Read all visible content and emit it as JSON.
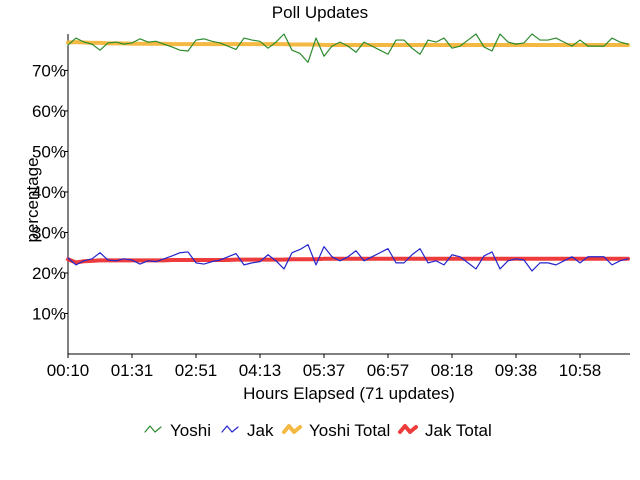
{
  "chart_data": {
    "type": "line",
    "title": "Poll Updates",
    "xlabel": "Hours Elapsed (71 updates)",
    "ylabel": "percentage",
    "ylim": [
      0,
      79
    ],
    "y_ticks": [
      "10%",
      "20%",
      "30%",
      "40%",
      "50%",
      "60%",
      "70%"
    ],
    "y_tick_values": [
      10,
      20,
      30,
      40,
      50,
      60,
      70
    ],
    "x_tick_labels": [
      "00:10",
      "01:31",
      "02:51",
      "04:13",
      "05:37",
      "06:57",
      "08:18",
      "09:38",
      "10:58"
    ],
    "x_tick_indices": [
      0,
      8,
      16,
      24,
      32,
      40,
      48,
      56,
      64
    ],
    "x_count": 71,
    "grid": false,
    "legend_position": "bottom",
    "series": [
      {
        "name": "Yoshi",
        "color": "#2e8b2e",
        "values": [
          76.3,
          78.0,
          77.0,
          76.5,
          75.0,
          76.8,
          77.0,
          76.5,
          76.8,
          77.8,
          77.0,
          77.2,
          76.5,
          75.8,
          75.0,
          74.8,
          77.5,
          77.8,
          77.2,
          76.8,
          76.0,
          75.2,
          78.0,
          77.5,
          77.2,
          75.5,
          77.0,
          79.0,
          75.0,
          74.2,
          72.0,
          78.0,
          73.5,
          76.0,
          77.0,
          76.0,
          74.5,
          77.0,
          76.0,
          75.0,
          74.0,
          77.5,
          77.5,
          75.5,
          74.0,
          77.5,
          77.0,
          78.0,
          75.5,
          76.0,
          77.5,
          79.0,
          75.8,
          74.8,
          79.0,
          77.0,
          76.5,
          76.8,
          79.0,
          77.5,
          77.5,
          78.0,
          77.0,
          76.0,
          77.5,
          76.0,
          76.0,
          76.0,
          78.0,
          77.0,
          76.5
        ]
      },
      {
        "name": "Jak",
        "color": "#2525cc",
        "values": [
          23.7,
          22.0,
          23.0,
          23.5,
          25.0,
          23.2,
          23.0,
          23.5,
          23.2,
          22.2,
          23.0,
          22.8,
          23.5,
          24.2,
          25.0,
          25.2,
          22.5,
          22.2,
          22.8,
          23.2,
          24.0,
          24.8,
          22.0,
          22.5,
          22.8,
          24.5,
          23.0,
          21.0,
          25.0,
          25.8,
          27.0,
          22.0,
          26.5,
          24.0,
          23.0,
          24.0,
          25.5,
          23.0,
          24.0,
          25.0,
          26.0,
          22.5,
          22.5,
          24.5,
          26.0,
          22.5,
          23.0,
          22.0,
          24.5,
          24.0,
          22.5,
          21.0,
          24.2,
          25.2,
          21.0,
          23.0,
          23.5,
          23.2,
          20.5,
          22.5,
          22.5,
          22.0,
          23.0,
          24.0,
          22.5,
          24.0,
          24.0,
          24.0,
          22.0,
          23.0,
          23.5
        ]
      },
      {
        "name": "Yoshi Total",
        "color": "#f4b942",
        "values": [
          76.9,
          77.0,
          76.9,
          76.8,
          76.8,
          76.7,
          76.7,
          76.7,
          76.6,
          76.6,
          76.6,
          76.6,
          76.6,
          76.5,
          76.5,
          76.5,
          76.5,
          76.5,
          76.5,
          76.5,
          76.5,
          76.5,
          76.5,
          76.5,
          76.5,
          76.5,
          76.5,
          76.5,
          76.4,
          76.4,
          76.4,
          76.4,
          76.3,
          76.3,
          76.3,
          76.3,
          76.3,
          76.3,
          76.3,
          76.3,
          76.3,
          76.3,
          76.3,
          76.3,
          76.3,
          76.3,
          76.3,
          76.3,
          76.3,
          76.3,
          76.3,
          76.3,
          76.3,
          76.3,
          76.3,
          76.3,
          76.3,
          76.3,
          76.3,
          76.3,
          76.3,
          76.3,
          76.3,
          76.3,
          76.3,
          76.3,
          76.3,
          76.3,
          76.3,
          76.3,
          76.3
        ]
      },
      {
        "name": "Jak Total",
        "color": "#ee3b3b",
        "values": [
          23.4,
          22.6,
          22.9,
          23.0,
          23.1,
          23.1,
          23.1,
          23.1,
          23.1,
          23.1,
          23.1,
          23.1,
          23.1,
          23.2,
          23.2,
          23.2,
          23.2,
          23.2,
          23.2,
          23.2,
          23.2,
          23.3,
          23.3,
          23.3,
          23.3,
          23.3,
          23.3,
          23.3,
          23.4,
          23.4,
          23.4,
          23.4,
          23.5,
          23.5,
          23.5,
          23.5,
          23.5,
          23.5,
          23.5,
          23.5,
          23.5,
          23.5,
          23.5,
          23.5,
          23.5,
          23.5,
          23.5,
          23.5,
          23.5,
          23.5,
          23.5,
          23.5,
          23.5,
          23.5,
          23.5,
          23.5,
          23.5,
          23.5,
          23.5,
          23.5,
          23.5,
          23.5,
          23.5,
          23.5,
          23.5,
          23.5,
          23.5,
          23.5,
          23.5,
          23.5,
          23.5
        ]
      }
    ]
  }
}
